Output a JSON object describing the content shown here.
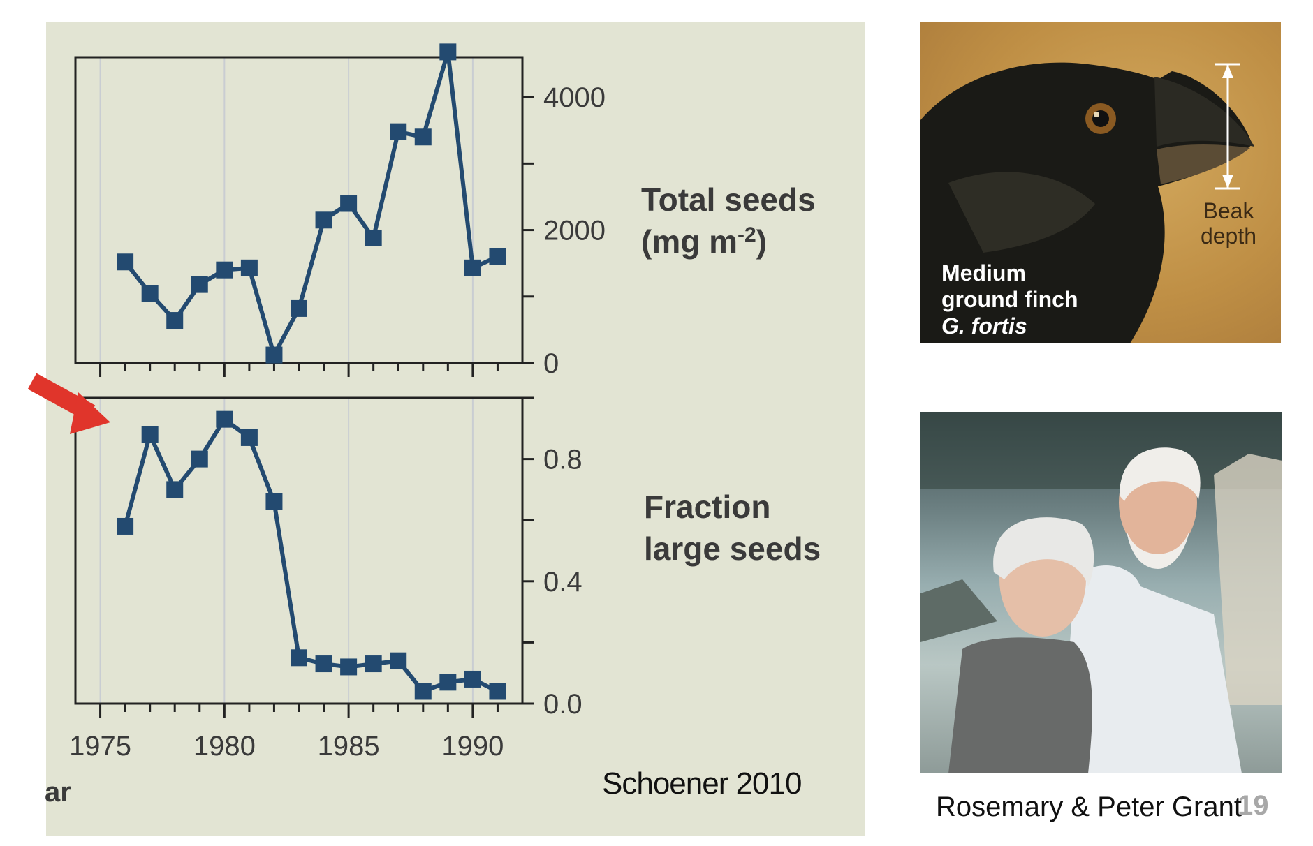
{
  "chart_data": [
    {
      "type": "line",
      "title": "",
      "ylabel_lines": [
        "Total seeds",
        "(mg m",
        "-2",
        ")"
      ],
      "x": [
        1976,
        1977,
        1978,
        1979,
        1980,
        1981,
        1982,
        1983,
        1984,
        1985,
        1986,
        1987,
        1988,
        1989,
        1990,
        1991
      ],
      "values": [
        1520,
        1050,
        640,
        1180,
        1400,
        1430,
        120,
        820,
        2150,
        2400,
        1880,
        3480,
        3400,
        4680,
        1430,
        1600
      ],
      "xlim": [
        1974,
        1992
      ],
      "ylim": [
        0,
        4600
      ],
      "y_tick_labels": [
        {
          "value": 0,
          "label": "0"
        },
        {
          "value": 2000,
          "label": "2000"
        },
        {
          "value": 4000,
          "label": "4000"
        }
      ],
      "y_minor_ticks": [
        1000,
        3000
      ],
      "grid": "vertical lines at 1975, 1980, 1985, 1990",
      "color": "#234a70"
    },
    {
      "type": "line",
      "title": "",
      "ylabel_lines": [
        "Fraction",
        "large seeds"
      ],
      "x": [
        1976,
        1977,
        1978,
        1979,
        1980,
        1981,
        1982,
        1983,
        1984,
        1985,
        1986,
        1987,
        1988,
        1989,
        1990,
        1991
      ],
      "values": [
        0.58,
        0.88,
        0.7,
        0.8,
        0.93,
        0.87,
        0.66,
        0.15,
        0.13,
        0.12,
        0.13,
        0.14,
        0.04,
        0.07,
        0.08,
        0.04
      ],
      "xlim": [
        1974,
        1992
      ],
      "ylim": [
        0,
        1.0
      ],
      "y_tick_labels": [
        {
          "value": 0.0,
          "label": "0.0"
        },
        {
          "value": 0.4,
          "label": "0.4"
        },
        {
          "value": 0.8,
          "label": "0.8"
        }
      ],
      "y_minor_ticks": [
        0.2,
        0.6,
        1.0
      ],
      "x_tick_labels": [
        "1975",
        "1980",
        "1985",
        "1990"
      ],
      "xlabel_fragment": "ar",
      "grid": "vertical lines at 1975, 1980, 1985, 1990",
      "color": "#234a70"
    }
  ],
  "annotations": {
    "arrow_color": "#e0352b"
  },
  "credits": {
    "chart_source": "Schoener 2010",
    "photo_people": "Rosemary & Peter Grant",
    "slide_number": "19"
  },
  "finch_photo": {
    "caption_line1": "Medium",
    "caption_line2": "ground finch",
    "caption_species": "G. fortis",
    "beak_label_line1": "Beak",
    "beak_label_line2": "depth"
  }
}
